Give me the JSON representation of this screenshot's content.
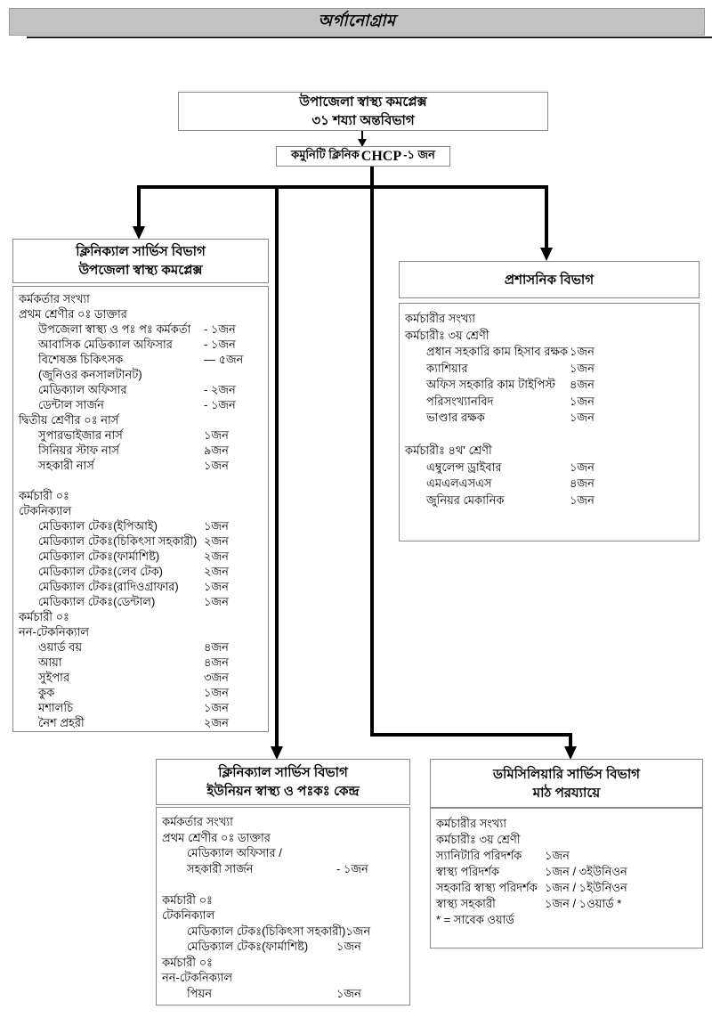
{
  "page_title": "অর্গানোগ্রাম",
  "colors": {
    "titlebar_bg": "#c3c3c3",
    "line": "#000000",
    "border": "#8a8a8a"
  },
  "root_box": {
    "line1": "উপাজেলা স্বাস্থ্য কমপ্লেক্স",
    "line2": "৩১ শয্যা অন্তবিভাগ"
  },
  "chcp_box": {
    "prefix": "কমুনিটি ক্লিনিক",
    "latin": "CHCP",
    "suffix": "-১ জন"
  },
  "left_branch": {
    "header": [
      "ক্লিনিক্যাল সার্ভিস বিভাগ",
      "উপজেলা স্বাস্থ্য কমপ্লেক্স"
    ],
    "rows": [
      {
        "label": "কর্মকর্তার সংখ্যা",
        "indent": 0
      },
      {
        "label": "প্রথম শ্রেণীর ০ঃ ডাক্তার",
        "indent": 0
      },
      {
        "label": "উপজেলা স্বাস্থ্য ও পঃ পঃ কর্মকর্তা",
        "count": "- ১জন",
        "indent": 1
      },
      {
        "label": "আবাসিক মেডিক্যাল অফিসার",
        "count": "- ১জন",
        "indent": 1
      },
      {
        "label": "বিশেষজ্ঞ  চিকিৎসক",
        "count": "— ৫জন",
        "indent": 1
      },
      {
        "label": "(জুনিওর কনসালটানট)",
        "indent": 1
      },
      {
        "label": "মেডিক্যাল অফিসার",
        "count": "- ২জন",
        "indent": 1
      },
      {
        "label": "ডেন্টাল সার্জন",
        "count": "- ১জন",
        "indent": 1
      },
      {
        "label": "দ্বিতীয় শ্রেণীর ০ঃ নার্স",
        "indent": 0
      },
      {
        "label": "সুপারভাইজার নার্স",
        "count": "১জন",
        "indent": 1
      },
      {
        "label": "সিনিয়র স্টাফ  নার্স",
        "count": "৯জন",
        "indent": 1
      },
      {
        "label": "সহকারী নার্স",
        "count": "১জন",
        "indent": 1
      },
      {
        "label": "",
        "indent": 0
      },
      {
        "label": "কর্মচারী ০ঃ",
        "indent": 0
      },
      {
        "label": "টেকনিক্যাল",
        "indent": 0
      },
      {
        "label": "মেডিক্যাল টেকঃ(ইপিআই)",
        "count": "১জন",
        "indent": 1
      },
      {
        "label": "মেডিক্যাল টেকঃ(চিকিৎসা সহকারী)",
        "count": "২জন",
        "indent": 1
      },
      {
        "label": "মেডিক্যাল টেকঃ(ফার্মাশিষ্ট)",
        "count": "২জন",
        "indent": 1
      },
      {
        "label": "মেডিক্যাল টেকঃ(লেব টেক)",
        "count": "২জন",
        "indent": 1
      },
      {
        "label": "মেডিক্যাল টেকঃ(রাদিওগ্রাফার)",
        "count": "১জন",
        "indent": 1
      },
      {
        "label": "মেডিক্যাল টেকঃ(ডেন্টাল)",
        "count": "১জন",
        "indent": 1
      },
      {
        "label": "কর্মচারী ০ঃ",
        "indent": 0
      },
      {
        "label": "নন-টেকনিক্যাল",
        "indent": 0
      },
      {
        "label": "ওয়ার্ড বয়",
        "count": "৪জন",
        "indent": 1
      },
      {
        "label": "আয়া",
        "count": "৪জন",
        "indent": 1
      },
      {
        "label": "সুইপার",
        "count": "৩জন",
        "indent": 1
      },
      {
        "label": "কুক",
        "count": "১জন",
        "indent": 1
      },
      {
        "label": "মশালচি",
        "count": "১জন",
        "indent": 1
      },
      {
        "label": "নৈশ প্রহরী",
        "count": "২জন",
        "indent": 1
      }
    ]
  },
  "admin_branch": {
    "header": [
      "প্রশাসনিক বিভাগ"
    ],
    "rows": [
      {
        "label": "কর্মচারীর সংখ্যা",
        "indent": 0
      },
      {
        "label": "কর্মচারীঃ ৩য় শ্রেণী",
        "indent": 0
      },
      {
        "label": "প্রধান সহকারি কাম হিসাব রক্ষক",
        "count": "১জন",
        "indent": 1
      },
      {
        "label": "ক্যাশিয়ার",
        "count": "১জন",
        "indent": 1
      },
      {
        "label": "অফিস সহকারি  কাম টাইপিস্ট",
        "count": "৪জন",
        "indent": 1
      },
      {
        "label": "পরিসংখ্যানবিদ",
        "count": "১জন",
        "indent": 1
      },
      {
        "label": "ভাণ্ডার রক্ষক",
        "count": "১জন",
        "indent": 1
      },
      {
        "label": "",
        "indent": 0
      },
      {
        "label": "কর্মচারীঃ ৪থ' শ্রেণী",
        "indent": 0
      },
      {
        "label": "এম্বুলেন্স ড্রাইবার",
        "count": "১জন",
        "indent": 1
      },
      {
        "label": "এমএলএসএস",
        "count": "৪জন",
        "indent": 1
      },
      {
        "label": "জুনিয়র মেকানিক",
        "count": "১জন",
        "indent": 1
      }
    ]
  },
  "union_branch": {
    "header": [
      "ক্লিনিক্যাল সার্ভিস বিভাগ",
      "ইউনিয়ন স্বাস্থ্য ও পঃকঃ কেন্দ্র"
    ],
    "rows": [
      {
        "label": "কর্মকর্তার সংখ্যা",
        "indent": 0
      },
      {
        "label": "প্রথম শ্রেণীর ০ঃ ডাক্তার",
        "indent": 0
      },
      {
        "label": "মেডিক্যাল অফিসার /",
        "indent": 1
      },
      {
        "label": "সহকারী সার্জন",
        "count": "- ১জন",
        "indent": 1
      },
      {
        "label": "",
        "indent": 0
      },
      {
        "label": "কর্মচারী ০ঃ",
        "indent": 0
      },
      {
        "label": "টেকনিক্যাল",
        "indent": 0
      },
      {
        "label": "মেডিক্যাল টেকঃ(চিকিৎসা সহকারী)",
        "count": "১জন",
        "indent": 1
      },
      {
        "label": "মেডিক্যাল টেকঃ(ফার্মাশিষ্ট)",
        "count": "১জন",
        "indent": 1
      },
      {
        "label": "কর্মচারী ০ঃ",
        "indent": 0
      },
      {
        "label": "নন-টেকনিক্যাল",
        "indent": 0
      },
      {
        "label": "পিয়ন",
        "count": "১জন",
        "indent": 1
      }
    ]
  },
  "domiciliary_branch": {
    "header": [
      "ডমিসিলিয়ারি সার্ভিস বিভাগ",
      "মাঠ পরয্যায়ে"
    ],
    "rows": [
      {
        "label": "কর্মচারীর সংখ্যা",
        "indent": 0
      },
      {
        "label": "কর্মচারীঃ ৩য় শ্রেণী",
        "indent": 0
      },
      {
        "label": "স্যানিটারি পরিদর্শক",
        "count": "১জন",
        "indent": 0
      },
      {
        "label": "স্বাস্থ্য পরিদর্শক",
        "count": "১জন / ৩ইউনিওন",
        "indent": 0
      },
      {
        "label": "সহকারি স্বাস্থ্য পরিদর্শক",
        "count": "১জন / ১ইউনিওন",
        "indent": 0
      },
      {
        "label": "স্বাস্থ্য সহকারী",
        "count": "১জন / ১ওয়ার্ড *",
        "indent": 0
      },
      {
        "label": "* = সাবেক ওয়ার্ড",
        "indent": 0
      }
    ]
  }
}
